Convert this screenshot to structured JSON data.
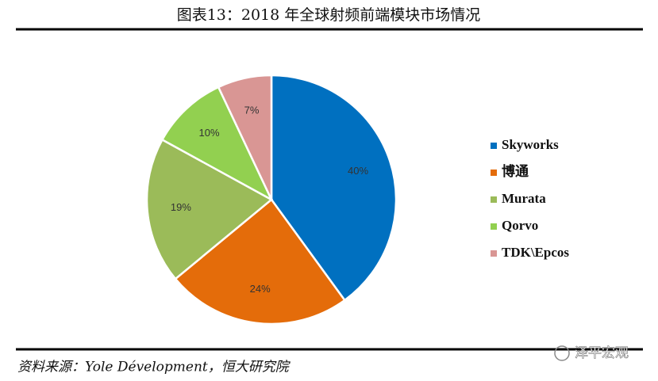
{
  "chart_data": {
    "type": "pie",
    "title": "图表13：2018 年全球射频前端模块市场情况",
    "categories": [
      "Skyworks",
      "博通",
      "Murata",
      "Qorvo",
      "TDK\\Epcos"
    ],
    "values": [
      40,
      24,
      19,
      10,
      7
    ],
    "value_labels": [
      "40%",
      "24%",
      "19%",
      "10%",
      "7%"
    ],
    "colors": [
      "#0070c0",
      "#e46c0a",
      "#9bbb59",
      "#92d050",
      "#d99694"
    ],
    "source": "资料来源：Yole Dévelopment，恒大研究院"
  },
  "watermark": "泽平宏观"
}
